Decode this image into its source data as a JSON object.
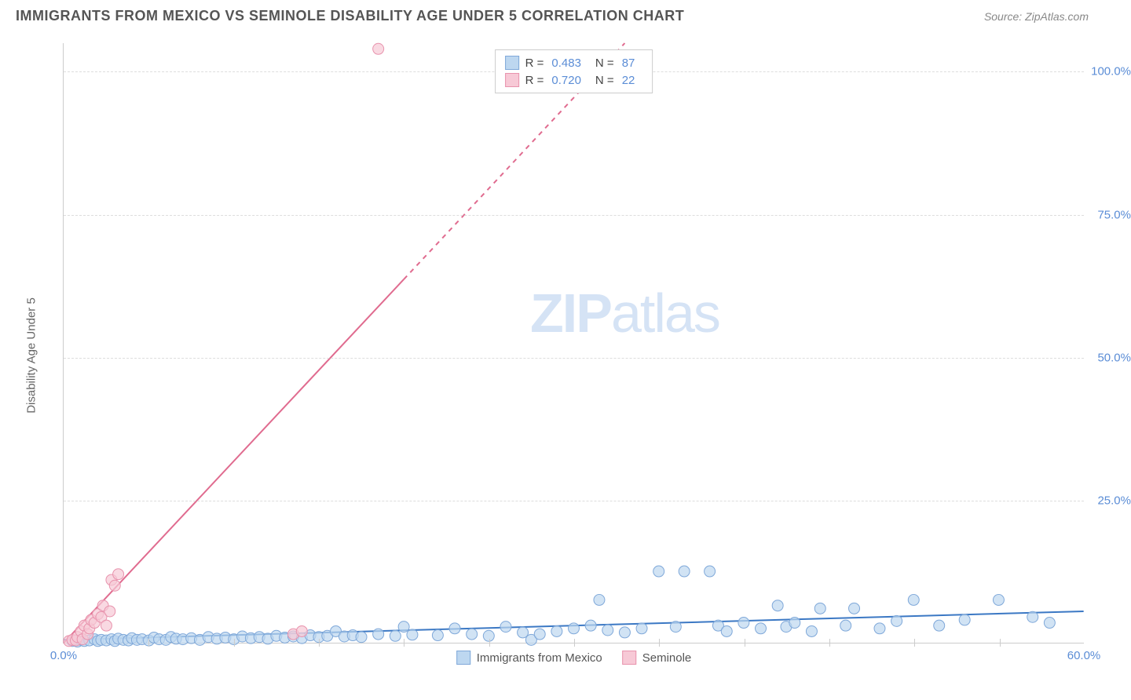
{
  "header": {
    "title": "IMMIGRANTS FROM MEXICO VS SEMINOLE DISABILITY AGE UNDER 5 CORRELATION CHART",
    "source_prefix": "Source: ",
    "source_name": "ZipAtlas.com"
  },
  "chart": {
    "type": "scatter",
    "xlim": [
      0,
      60
    ],
    "ylim": [
      0,
      105
    ],
    "xlabel_min": "0.0%",
    "xlabel_max": "60.0%",
    "ylabel": "Disability Age Under 5",
    "yticks": [
      {
        "value": 25,
        "label": "25.0%"
      },
      {
        "value": 50,
        "label": "50.0%"
      },
      {
        "value": 75,
        "label": "75.0%"
      },
      {
        "value": 100,
        "label": "100.0%"
      }
    ],
    "xticks_minor": [
      5,
      10,
      15,
      20,
      25,
      30,
      35,
      40,
      45,
      50,
      55
    ],
    "background_color": "#ffffff",
    "grid_color": "#dddddd",
    "watermark": "ZIPatlas",
    "legend_top": [
      {
        "color_fill": "#bdd7f0",
        "color_border": "#7fa8d9",
        "r_label": "R =",
        "r": "0.483",
        "n_label": "N =",
        "n": "87"
      },
      {
        "color_fill": "#f7c9d6",
        "color_border": "#e893ad",
        "r_label": "R =",
        "r": "0.720",
        "n_label": "N =",
        "n": "22"
      }
    ],
    "legend_bottom": [
      {
        "color_fill": "#bdd7f0",
        "color_border": "#7fa8d9",
        "label": "Immigrants from Mexico"
      },
      {
        "color_fill": "#f7c9d6",
        "color_border": "#e893ad",
        "label": "Seminole"
      }
    ],
    "series": [
      {
        "name": "Immigrants from Mexico",
        "marker_color": "#bdd7f0",
        "marker_border": "#7fa8d9",
        "marker_radius": 7,
        "trend_color": "#3b78c4",
        "trend_width": 2,
        "trend": {
          "x1": 0,
          "y1": 0.5,
          "x2": 60,
          "y2": 5.5,
          "dash_from_x": null
        },
        "points": [
          [
            0.5,
            0.3
          ],
          [
            0.8,
            0.2
          ],
          [
            1.0,
            0.5
          ],
          [
            1.2,
            0.3
          ],
          [
            1.5,
            0.4
          ],
          [
            1.8,
            0.6
          ],
          [
            2.0,
            0.3
          ],
          [
            2.2,
            0.5
          ],
          [
            2.5,
            0.4
          ],
          [
            2.8,
            0.6
          ],
          [
            3.0,
            0.3
          ],
          [
            3.2,
            0.7
          ],
          [
            3.5,
            0.5
          ],
          [
            3.8,
            0.4
          ],
          [
            4.0,
            0.8
          ],
          [
            4.3,
            0.5
          ],
          [
            4.6,
            0.6
          ],
          [
            5.0,
            0.4
          ],
          [
            5.3,
            0.9
          ],
          [
            5.6,
            0.6
          ],
          [
            6.0,
            0.5
          ],
          [
            6.3,
            1.0
          ],
          [
            6.6,
            0.7
          ],
          [
            7.0,
            0.6
          ],
          [
            7.5,
            0.8
          ],
          [
            8.0,
            0.5
          ],
          [
            8.5,
            1.0
          ],
          [
            9.0,
            0.7
          ],
          [
            9.5,
            0.9
          ],
          [
            10.0,
            0.6
          ],
          [
            10.5,
            1.1
          ],
          [
            11.0,
            0.8
          ],
          [
            11.5,
            1.0
          ],
          [
            12.0,
            0.7
          ],
          [
            12.5,
            1.2
          ],
          [
            13.0,
            0.9
          ],
          [
            13.5,
            1.1
          ],
          [
            14.0,
            0.8
          ],
          [
            14.5,
            1.3
          ],
          [
            15.0,
            1.0
          ],
          [
            15.5,
            1.2
          ],
          [
            16.0,
            2.0
          ],
          [
            16.5,
            1.1
          ],
          [
            17.0,
            1.3
          ],
          [
            17.5,
            1.0
          ],
          [
            18.5,
            1.5
          ],
          [
            19.5,
            1.2
          ],
          [
            20.0,
            2.8
          ],
          [
            20.5,
            1.4
          ],
          [
            22.0,
            1.3
          ],
          [
            23.0,
            2.5
          ],
          [
            24.0,
            1.5
          ],
          [
            25.0,
            1.2
          ],
          [
            26.0,
            2.8
          ],
          [
            27.0,
            1.8
          ],
          [
            27.5,
            0.5
          ],
          [
            28.0,
            1.5
          ],
          [
            29.0,
            2.0
          ],
          [
            30.0,
            2.5
          ],
          [
            31.0,
            3.0
          ],
          [
            31.5,
            7.5
          ],
          [
            32.0,
            2.2
          ],
          [
            33.0,
            1.8
          ],
          [
            34.0,
            2.5
          ],
          [
            35.0,
            12.5
          ],
          [
            36.0,
            2.8
          ],
          [
            36.5,
            12.5
          ],
          [
            38.0,
            12.5
          ],
          [
            38.5,
            3.0
          ],
          [
            39.0,
            2.0
          ],
          [
            40.0,
            3.5
          ],
          [
            41.0,
            2.5
          ],
          [
            42.0,
            6.5
          ],
          [
            42.5,
            2.8
          ],
          [
            43.0,
            3.5
          ],
          [
            44.0,
            2.0
          ],
          [
            44.5,
            6.0
          ],
          [
            46.0,
            3.0
          ],
          [
            46.5,
            6.0
          ],
          [
            48.0,
            2.5
          ],
          [
            49.0,
            3.8
          ],
          [
            50.0,
            7.5
          ],
          [
            51.5,
            3.0
          ],
          [
            53.0,
            4.0
          ],
          [
            55.0,
            7.5
          ],
          [
            57.0,
            4.5
          ],
          [
            58.0,
            3.5
          ]
        ]
      },
      {
        "name": "Seminole",
        "marker_color": "#f7c9d6",
        "marker_border": "#e893ad",
        "marker_radius": 7,
        "trend_color": "#e06b8f",
        "trend_width": 2,
        "trend": {
          "x1": 0,
          "y1": 0,
          "x2": 33,
          "y2": 105,
          "dash_from_x": 20
        },
        "points": [
          [
            0.3,
            0.3
          ],
          [
            0.5,
            0.5
          ],
          [
            0.7,
            0.4
          ],
          [
            0.8,
            1.0
          ],
          [
            1.0,
            2.0
          ],
          [
            1.1,
            0.6
          ],
          [
            1.2,
            3.0
          ],
          [
            1.4,
            1.5
          ],
          [
            1.5,
            2.5
          ],
          [
            1.6,
            4.0
          ],
          [
            1.8,
            3.5
          ],
          [
            2.0,
            5.0
          ],
          [
            2.2,
            4.5
          ],
          [
            2.3,
            6.5
          ],
          [
            2.5,
            3.0
          ],
          [
            2.7,
            5.5
          ],
          [
            2.8,
            11.0
          ],
          [
            3.0,
            10.0
          ],
          [
            3.2,
            12.0
          ],
          [
            13.5,
            1.5
          ],
          [
            14.0,
            2.0
          ],
          [
            18.5,
            104.0
          ]
        ]
      }
    ]
  }
}
